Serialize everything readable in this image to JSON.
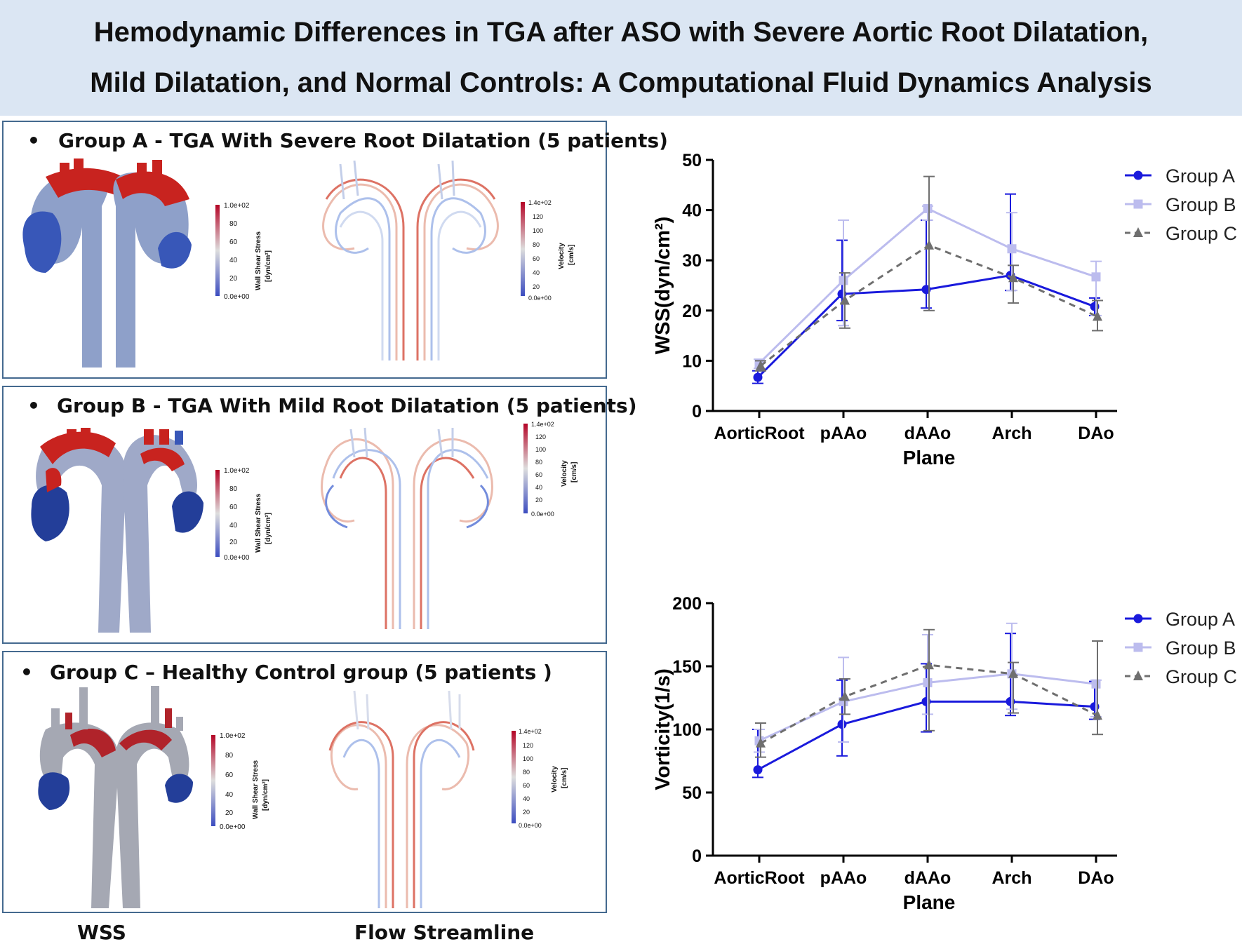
{
  "title": {
    "line1": "Hemodynamic Differences in TGA after ASO with Severe Aortic Root Dilatation,",
    "line2": "Mild Dilatation, and Normal Controls: A Computational Fluid Dynamics Analysis"
  },
  "panels": [
    {
      "bullet": "•",
      "title": "Group A - TGA With Severe Root Dilatation (5 patients)",
      "wss_colorbar": {
        "max": "1.0e+02",
        "ticks": [
          "80",
          "60",
          "40",
          "20"
        ],
        "min": "0.0e+00",
        "label": "Wall Shear Stress",
        "unit": "[dyn/cm²]"
      },
      "vel_colorbar": {
        "max": "1.4e+02",
        "ticks": [
          "120",
          "100",
          "80",
          "60",
          "40",
          "20"
        ],
        "min": "0.0e+00",
        "label": "Velocity",
        "unit": "[cm/s]"
      }
    },
    {
      "bullet": "•",
      "title": "Group B - TGA With Mild Root Dilatation (5 patients)",
      "wss_colorbar": {
        "max": "1.0e+02",
        "ticks": [
          "80",
          "60",
          "40",
          "20"
        ],
        "min": "0.0e+00",
        "label": "Wall Shear Stress",
        "unit": "[dyn/cm²]"
      },
      "vel_colorbar": {
        "max": "1.4e+02",
        "ticks": [
          "120",
          "100",
          "80",
          "60",
          "40",
          "20"
        ],
        "min": "0.0e+00",
        "label": "Velocity",
        "unit": "[cm/s]"
      }
    },
    {
      "bullet": "•",
      "title": "Group C – Healthy Control group (5 patients )",
      "wss_colorbar": {
        "max": "1.0e+02",
        "ticks": [
          "80",
          "60",
          "40",
          "20"
        ],
        "min": "0.0e+00",
        "label": "Wall Shear Stress",
        "unit": "[dyn/cm²]"
      },
      "vel_colorbar": {
        "max": "1.4e+02",
        "ticks": [
          "120",
          "100",
          "80",
          "60",
          "40",
          "20"
        ],
        "min": "0.0e+00",
        "label": "Velocity",
        "unit": "[cm/s]"
      }
    }
  ],
  "footer": {
    "wss": "WSS",
    "flow": "Flow Streamline"
  },
  "colors": {
    "groupA": "#1a1adc",
    "groupB": "#bcbcee",
    "groupC": "#6f6f6f",
    "banner": "#dbe6f3",
    "panel_border": "#44698f"
  },
  "chart_data": [
    {
      "type": "line",
      "title": "",
      "xlabel": "Plane",
      "ylabel": "WSS(dyn/cm²)",
      "categories": [
        "AorticRoot",
        "pAAo",
        "dAAo",
        "Arch",
        "DAo"
      ],
      "ylim": [
        0,
        50
      ],
      "yticks": [
        0,
        10,
        20,
        30,
        40,
        50
      ],
      "legend": "top-right",
      "series": [
        {
          "name": "Group A",
          "values": [
            6.7,
            23.3,
            24.2,
            27.0,
            20.8
          ],
          "err_low": [
            5.5,
            18.0,
            20.5,
            24.0,
            19.0
          ],
          "err_high": [
            8.0,
            34.0,
            38.0,
            43.2,
            22.5
          ]
        },
        {
          "name": "Group B",
          "values": [
            9.5,
            26.0,
            40.3,
            32.3,
            26.7
          ],
          "err_low": [
            8.5,
            17.0,
            38.0,
            24.0,
            19.0
          ],
          "err_high": [
            10.3,
            38.0,
            40.8,
            39.5,
            29.8
          ]
        },
        {
          "name": "Group C",
          "values": [
            9.0,
            22.0,
            33.0,
            26.5,
            18.8
          ],
          "err_low": [
            8.0,
            16.5,
            20.0,
            21.5,
            16.0
          ],
          "err_high": [
            10.0,
            27.5,
            46.7,
            29.0,
            22.0
          ]
        }
      ]
    },
    {
      "type": "line",
      "title": "",
      "xlabel": "Plane",
      "ylabel": "Vorticity(1/s)",
      "categories": [
        "AorticRoot",
        "pAAo",
        "dAAo",
        "Arch",
        "DAo"
      ],
      "ylim": [
        0,
        200
      ],
      "yticks": [
        0,
        50,
        100,
        150,
        200
      ],
      "legend": "top-right",
      "series": [
        {
          "name": "Group A",
          "values": [
            68,
            104,
            122,
            122,
            118
          ],
          "err_low": [
            62,
            79,
            98,
            111,
            108
          ],
          "err_high": [
            100,
            139,
            152,
            176,
            138
          ]
        },
        {
          "name": "Group B",
          "values": [
            91,
            122,
            137,
            144,
            136
          ],
          "err_low": [
            82,
            90,
            112,
            116,
            110
          ],
          "err_high": [
            100,
            157,
            175,
            184,
            139
          ]
        },
        {
          "name": "Group C",
          "values": [
            89,
            126,
            151,
            144,
            111
          ],
          "err_low": [
            78,
            112,
            99,
            113,
            96
          ],
          "err_high": [
            105,
            140,
            179,
            153,
            170
          ]
        }
      ]
    }
  ]
}
